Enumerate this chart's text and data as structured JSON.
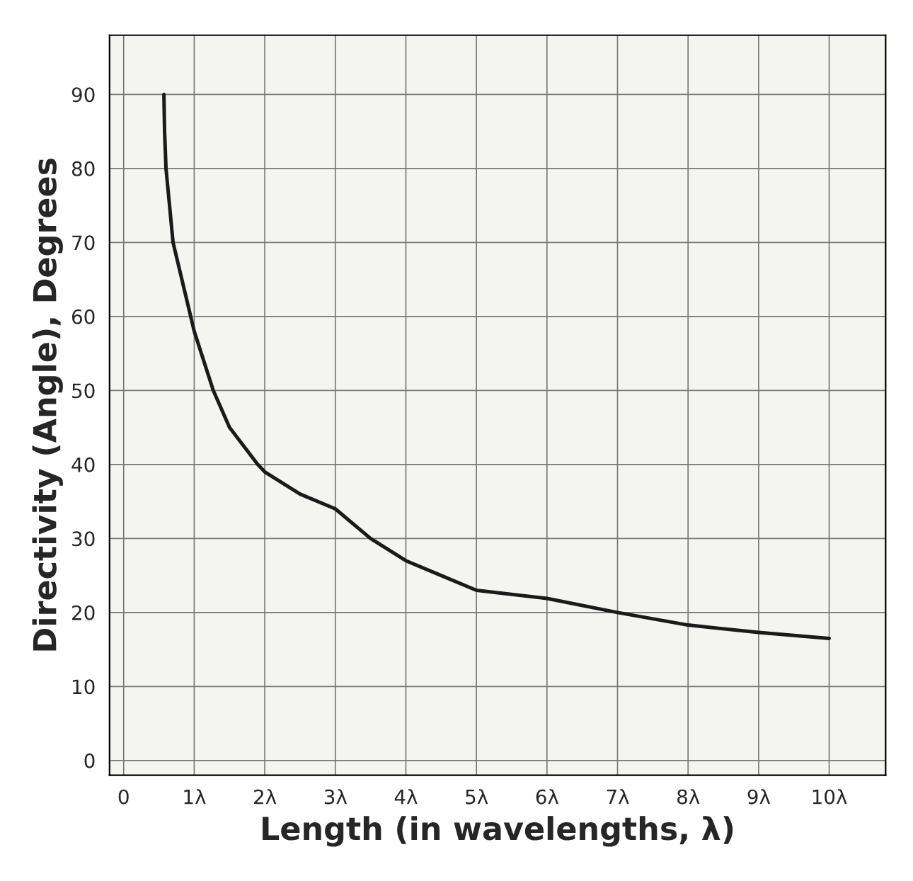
{
  "chart_data": {
    "type": "line",
    "xlabel": "Length (in wavelengths, λ)",
    "ylabel": "Directivity (Angle), Degrees",
    "x": [
      0.57,
      0.58,
      0.6,
      0.7,
      0.95,
      1.0,
      1.27,
      1.5,
      1.9,
      2.0,
      2.5,
      3.0,
      3.5,
      4.0,
      4.5,
      5.0,
      6.0,
      7.0,
      8.0,
      9.0,
      10.0
    ],
    "series": [
      {
        "color": "#1a1a1a",
        "values": [
          90,
          85,
          80,
          70,
          60,
          58,
          50,
          45,
          40,
          39,
          36,
          34,
          30,
          27,
          25,
          23,
          21.9,
          20,
          18.3,
          17.3,
          16.5
        ]
      }
    ],
    "xlim": [
      -0.2,
      10.8
    ],
    "ylim": [
      -2,
      98
    ],
    "xticks": [
      {
        "value": 0,
        "label": "0"
      },
      {
        "value": 1,
        "label": "1λ"
      },
      {
        "value": 2,
        "label": "2λ"
      },
      {
        "value": 3,
        "label": "3λ"
      },
      {
        "value": 4,
        "label": "4λ"
      },
      {
        "value": 5,
        "label": "5λ"
      },
      {
        "value": 6,
        "label": "6λ"
      },
      {
        "value": 7,
        "label": "7λ"
      },
      {
        "value": 8,
        "label": "8λ"
      },
      {
        "value": 9,
        "label": "9λ"
      },
      {
        "value": 10,
        "label": "10λ"
      }
    ],
    "yticks": [
      0,
      10,
      20,
      30,
      40,
      50,
      60,
      70,
      80,
      90
    ],
    "grid": true,
    "marker": "none",
    "line_style": "solid"
  }
}
